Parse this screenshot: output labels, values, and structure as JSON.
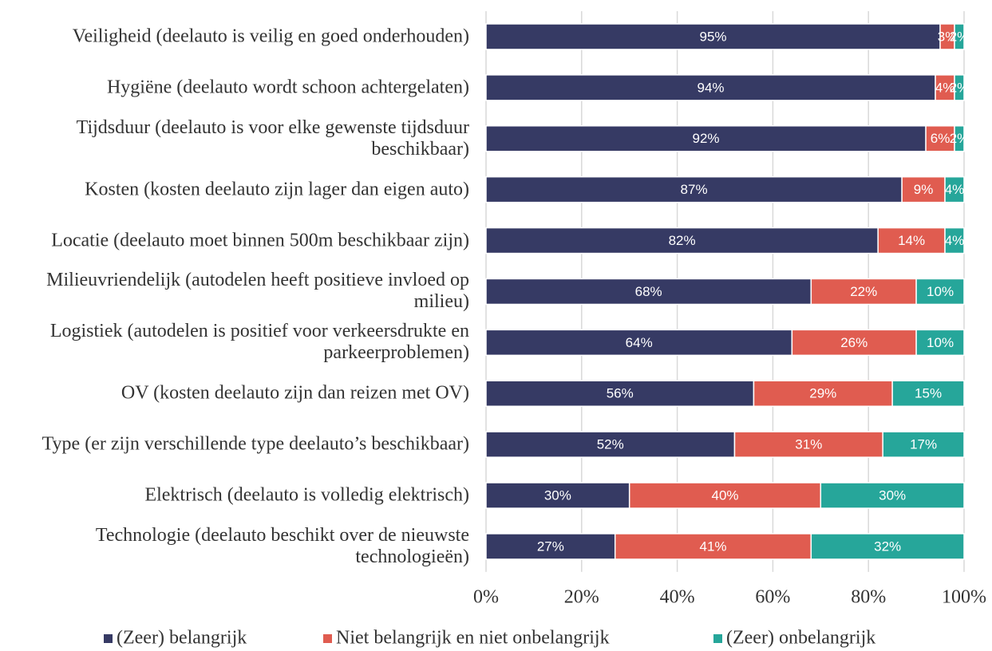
{
  "chart_data": {
    "type": "stacked-barh",
    "categories": [
      "Veiligheid (deelauto is veilig en goed onderhouden)",
      "Hygiëne (deelauto wordt schoon achtergelaten)",
      "Tijdsduur (deelauto is voor elke gewenste tijdsduur beschikbaar)",
      "Kosten (kosten deelauto zijn lager dan eigen auto)",
      "Locatie (deelauto moet binnen 500m beschikbaar zijn)",
      "Milieuvriendelijk (autodelen heeft positieve invloed op milieu)",
      "Logistiek (autodelen is positief voor verkeersdrukte en parkeerproblemen)",
      "OV (kosten deelauto zijn dan reizen met OV)",
      "Type (er zijn verschillende type deelauto’s beschikbaar)",
      "Elektrisch (deelauto is volledig elektrisch)",
      "Technologie (deelauto beschikt over de nieuwste technologieën)"
    ],
    "series": [
      {
        "name": "(Zeer) belangrijk",
        "color": "#363a64",
        "values": [
          95,
          94,
          92,
          87,
          82,
          68,
          64,
          56,
          52,
          30,
          27
        ],
        "value_labels": [
          "95%",
          "94%",
          "92%",
          "87%",
          "82%",
          "68%",
          "64%",
          "56%",
          "52%",
          "30%",
          "27%"
        ]
      },
      {
        "name": "Niet belangrijk en niet onbelangrijk",
        "color": "#e05c50",
        "values": [
          3,
          4,
          6,
          9,
          14,
          22,
          26,
          29,
          31,
          40,
          41
        ],
        "value_labels": [
          "3%",
          "4%",
          "6%",
          "9%",
          "14%",
          "22%",
          "26%",
          "29%",
          "31%",
          "40%",
          "41%"
        ]
      },
      {
        "name": "(Zeer) onbelangrijk",
        "color": "#26a69a",
        "values": [
          2,
          2,
          2,
          4,
          4,
          10,
          10,
          15,
          17,
          30,
          32
        ],
        "value_labels": [
          "2%",
          "2%",
          "2%",
          "4%",
          "4%",
          "10%",
          "10%",
          "15%",
          "17%",
          "30%",
          "32%"
        ]
      }
    ],
    "xlim": [
      0,
      100
    ],
    "xticks": [
      {
        "value": 0,
        "label": "0%"
      },
      {
        "value": 20,
        "label": "20%"
      },
      {
        "value": 40,
        "label": "40%"
      },
      {
        "value": 60,
        "label": "60%"
      },
      {
        "value": 80,
        "label": "80%"
      },
      {
        "value": 100,
        "label": "100%"
      }
    ],
    "grid": true,
    "legend": "bottom"
  }
}
